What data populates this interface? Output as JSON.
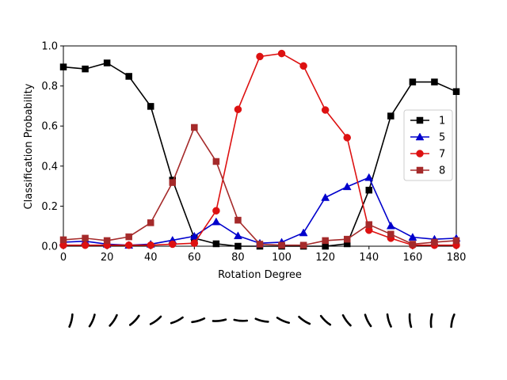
{
  "chart_data": {
    "type": "line",
    "title": "",
    "xlabel": "Rotation Degree",
    "ylabel": "Classification Probability",
    "xlim": [
      0,
      180
    ],
    "ylim": [
      0.0,
      1.0
    ],
    "x": [
      0,
      10,
      20,
      30,
      40,
      50,
      60,
      70,
      80,
      90,
      100,
      110,
      120,
      130,
      140,
      150,
      160,
      170,
      180
    ],
    "xticks": [
      "0",
      "20",
      "40",
      "60",
      "80",
      "100",
      "120",
      "140",
      "160",
      "180"
    ],
    "yticks": [
      "0.0",
      "0.2",
      "0.4",
      "0.6",
      "0.8",
      "1.0"
    ],
    "grid": false,
    "legend_placement": "center-right",
    "series": [
      {
        "name": "1",
        "color": "#000000",
        "marker": "square",
        "values": [
          0.895,
          0.885,
          0.915,
          0.848,
          0.698,
          0.33,
          0.04,
          0.012,
          0.0,
          0.0,
          0.0,
          0.0,
          0.0,
          0.012,
          0.28,
          0.65,
          0.82,
          0.82,
          0.772
        ]
      },
      {
        "name": "5",
        "color": "#0000cc",
        "marker": "triangle",
        "values": [
          0.02,
          0.025,
          0.01,
          0.005,
          0.01,
          0.03,
          0.05,
          0.122,
          0.052,
          0.015,
          0.02,
          0.067,
          0.243,
          0.297,
          0.343,
          0.102,
          0.045,
          0.035,
          0.04
        ]
      },
      {
        "name": "7",
        "color": "#dd1111",
        "marker": "circle",
        "values": [
          0.005,
          0.005,
          0.005,
          0.005,
          0.005,
          0.01,
          0.015,
          0.177,
          0.683,
          0.947,
          0.962,
          0.9,
          0.68,
          0.542,
          0.08,
          0.04,
          0.005,
          0.005,
          0.005
        ]
      },
      {
        "name": "8",
        "color": "#a52a2a",
        "marker": "square",
        "values": [
          0.032,
          0.04,
          0.028,
          0.047,
          0.117,
          0.318,
          0.593,
          0.423,
          0.13,
          0.01,
          0.005,
          0.005,
          0.028,
          0.035,
          0.108,
          0.06,
          0.01,
          0.02,
          0.028
        ]
      }
    ]
  },
  "strip": {
    "description_icon": "rotated-digit-strokes",
    "angles": [
      0,
      10,
      20,
      30,
      40,
      50,
      60,
      70,
      80,
      90,
      100,
      110,
      120,
      130,
      140,
      150,
      160,
      170,
      180
    ]
  }
}
